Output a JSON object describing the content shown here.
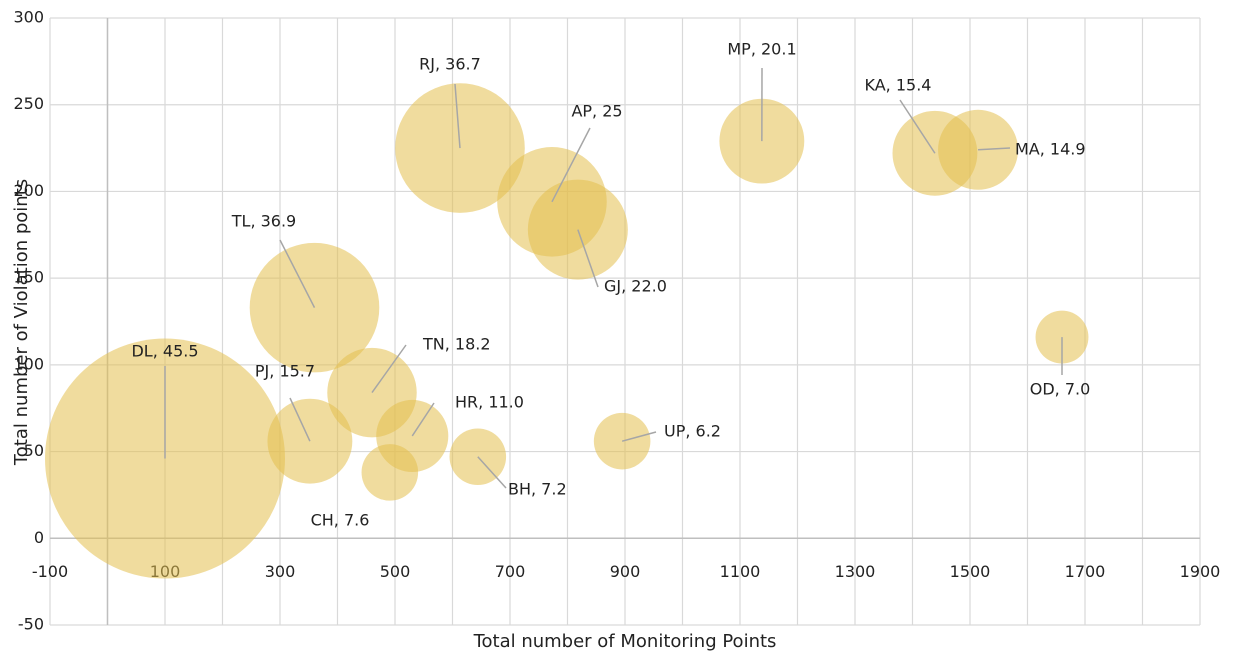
{
  "chart_data": {
    "type": "bubble",
    "x_label": "Total  number of Monitoring Points",
    "y_label": "Total  number of Violation points",
    "xlim": [
      -100,
      1900
    ],
    "ylim": [
      -50,
      300
    ],
    "xticks": [
      -100,
      100,
      300,
      500,
      700,
      900,
      1100,
      1300,
      1500,
      1700,
      1900
    ],
    "x_minor_grid": [
      0,
      200,
      400,
      600,
      800,
      1000,
      1200,
      1400,
      1600,
      1800
    ],
    "yticks": [
      -50,
      0,
      50,
      100,
      150,
      200,
      250,
      300
    ],
    "grid": true,
    "color": "#e3bf4f",
    "labels": [
      "DL, 45.5",
      "TL, 36.9",
      "RJ, 36.7",
      "AP, 25",
      "GJ, 22.0",
      "MP, 20.1",
      "KA, 15.4",
      "MA, 14.9",
      "OD, 7.0",
      "TN, 18.2",
      "PJ, 15.7",
      "HR, 11.0",
      "CH, 7.6",
      "BH, 7.2",
      "UP, 6.2"
    ],
    "x": [
      100,
      360,
      613,
      773,
      818,
      1138,
      1439,
      1514,
      1660,
      460,
      352,
      530,
      491,
      644,
      895
    ],
    "y": [
      46,
      133,
      225,
      194,
      178,
      229,
      222,
      224,
      116,
      84,
      56,
      59,
      38,
      47,
      56
    ],
    "sizes": [
      144,
      42,
      42,
      30,
      25,
      18,
      18,
      16,
      7,
      20,
      18,
      13,
      8,
      8,
      8
    ]
  }
}
